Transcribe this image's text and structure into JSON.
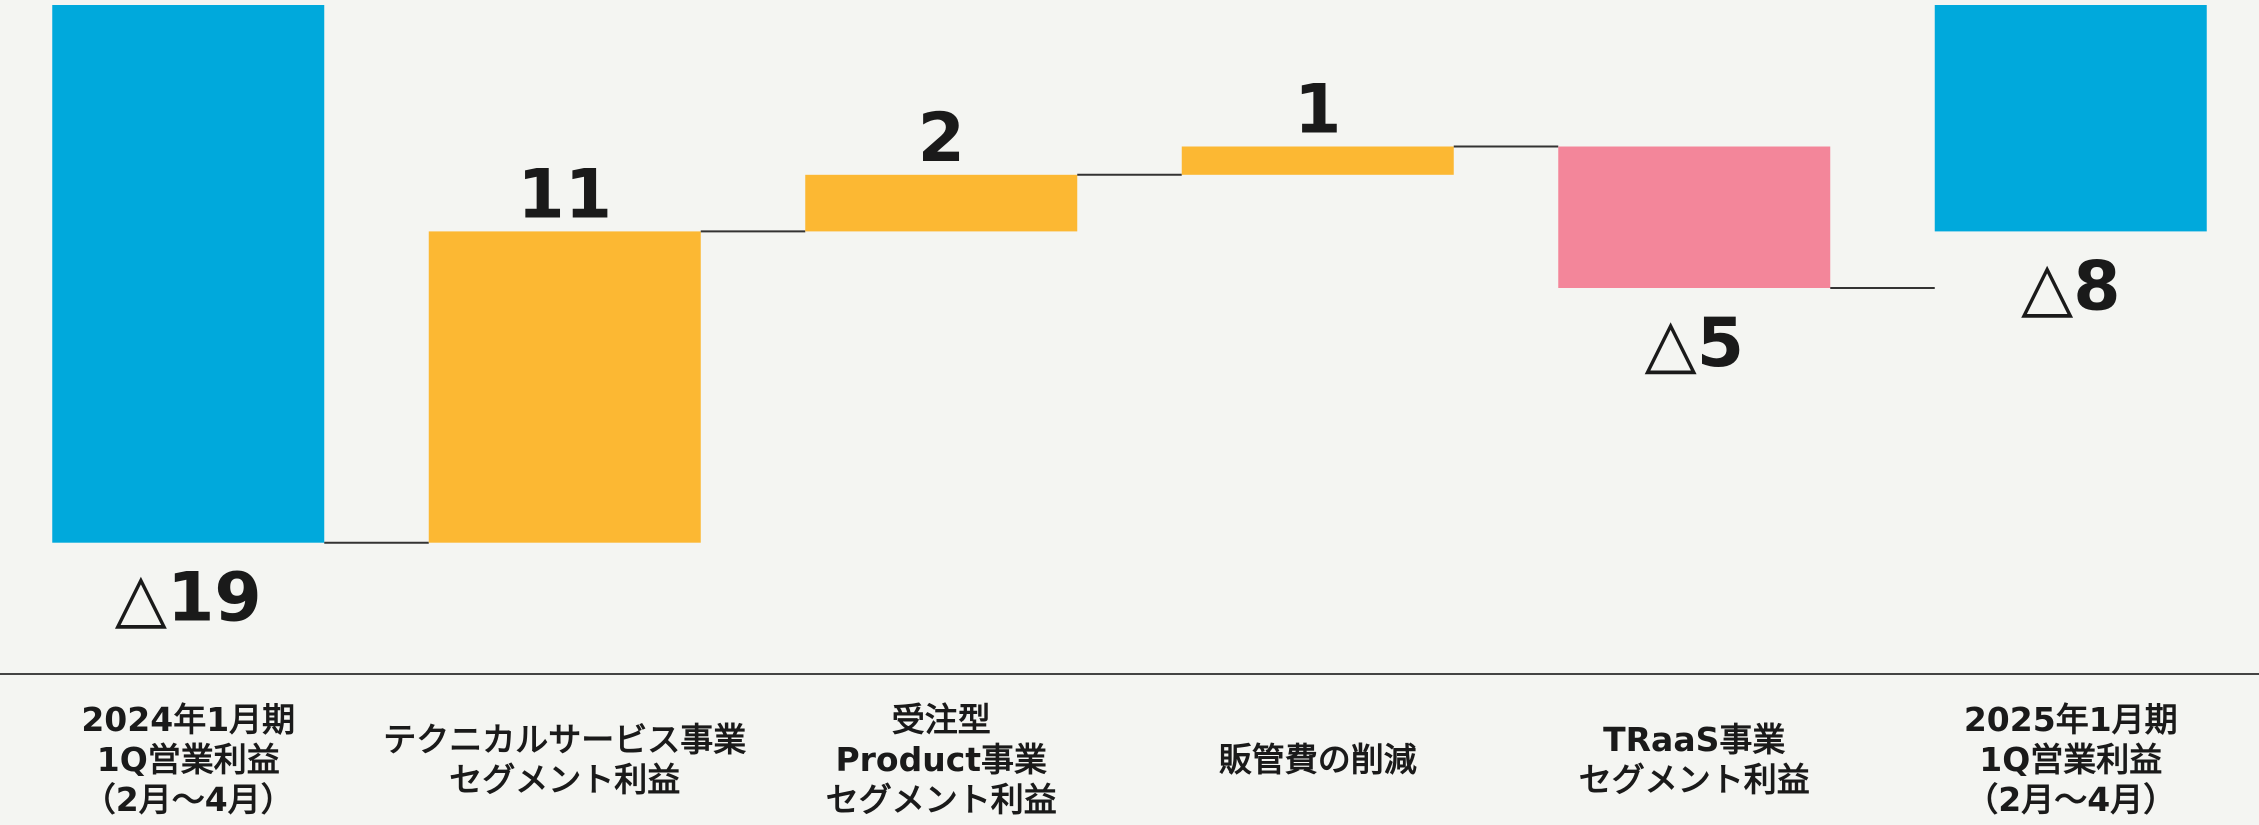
{
  "chart_data": {
    "type": "waterfall",
    "unit_hint": "",
    "colors": {
      "total": "#00a9dc",
      "increase": "#fcb833",
      "decrease": "#f3869a",
      "connector": "#333333",
      "axis": "#444444",
      "text": "#1a1a1a"
    },
    "ylim": [
      -20,
      0
    ],
    "categories": [
      {
        "label_lines": [
          "2024年1月期",
          "1Q営業利益",
          "（2月〜4月）"
        ]
      },
      {
        "label_lines": [
          "テクニカルサービス事業",
          "セグメント利益"
        ]
      },
      {
        "label_lines": [
          "受注型",
          "Product事業",
          "セグメント利益"
        ]
      },
      {
        "label_lines": [
          "販管費の削減"
        ]
      },
      {
        "label_lines": [
          "TRaaS事業",
          "セグメント利益"
        ]
      },
      {
        "label_lines": [
          "2025年1月期",
          "1Q営業利益",
          "（2月〜4月）"
        ]
      }
    ],
    "values": [
      -19,
      11,
      2,
      1,
      -5,
      -8
    ],
    "kinds": [
      "total",
      "increase",
      "increase",
      "increase",
      "decrease",
      "total"
    ],
    "value_labels": [
      "△19",
      "11",
      "2",
      "1",
      "△5",
      "△8"
    ]
  }
}
